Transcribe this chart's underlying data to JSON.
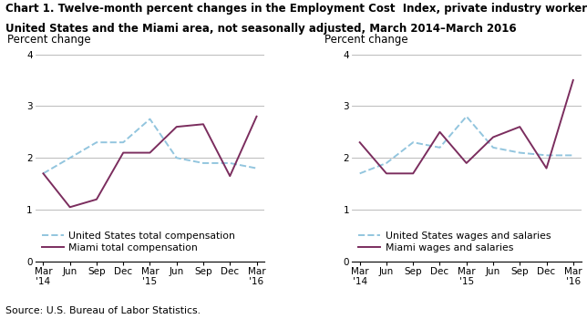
{
  "title_line1": "Chart 1. Twelve-month percent changes in the Employment Cost  Index, private industry workers,",
  "title_line2": "United States and the Miami area, not seasonally adjusted, March 2014–March 2016",
  "source": "Source: U.S. Bureau of Labor Statistics.",
  "ylabel": "Percent change",
  "xlabels": [
    "Mar\n'14",
    "Jun",
    "Sep",
    "Dec",
    "Mar\n'15",
    "Jun",
    "Sep",
    "Dec",
    "Mar\n'16"
  ],
  "ylim": [
    0.0,
    4.0
  ],
  "yticks": [
    0.0,
    1.0,
    2.0,
    3.0,
    4.0
  ],
  "left_chart": {
    "us_total": [
      1.7,
      2.0,
      2.3,
      2.3,
      2.75,
      2.0,
      1.9,
      1.9,
      1.8
    ],
    "miami_total": [
      1.7,
      1.05,
      1.2,
      2.1,
      2.1,
      2.6,
      2.65,
      1.65,
      2.8
    ],
    "legend1": "United States total compensation",
    "legend2": "Miami total compensation"
  },
  "right_chart": {
    "us_wages": [
      1.7,
      1.9,
      2.3,
      2.2,
      2.8,
      2.2,
      2.1,
      2.05,
      2.05
    ],
    "miami_wages": [
      2.3,
      1.7,
      1.7,
      2.5,
      1.9,
      2.4,
      2.6,
      1.8,
      3.5
    ],
    "legend1": "United States wages and salaries",
    "legend2": "Miami wages and salaries"
  },
  "us_color": "#92c5de",
  "miami_color": "#7b2d5e",
  "grid_color": "#b0b0b0",
  "title_fontsize": 8.5,
  "axis_label_fontsize": 8.5,
  "tick_fontsize": 7.5,
  "legend_fontsize": 7.8,
  "source_fontsize": 7.8
}
